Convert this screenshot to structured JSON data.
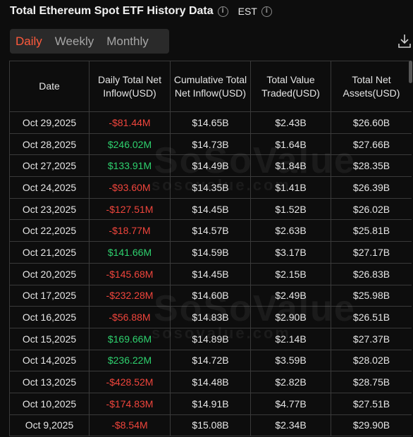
{
  "header": {
    "title": "Total Ethereum Spot ETF History Data",
    "timezone": "EST"
  },
  "tabs": [
    "Daily",
    "Weekly",
    "Monthly"
  ],
  "active_tab": "Daily",
  "watermark": {
    "brand": "SoSoValue",
    "url": "sosovalue.com"
  },
  "table": {
    "headers": [
      "Date",
      "Daily Total Net Inflow(USD)",
      "Cumulative Total Net Inflow(USD)",
      "Total Value Traded(USD)",
      "Total Net Assets(USD)"
    ],
    "rows": [
      [
        "Oct 29,2025",
        "-$81.44M",
        "$14.65B",
        "$2.43B",
        "$26.60B"
      ],
      [
        "Oct 28,2025",
        "$246.02M",
        "$14.73B",
        "$1.64B",
        "$27.66B"
      ],
      [
        "Oct 27,2025",
        "$133.91M",
        "$14.49B",
        "$1.84B",
        "$28.35B"
      ],
      [
        "Oct 24,2025",
        "-$93.60M",
        "$14.35B",
        "$1.41B",
        "$26.39B"
      ],
      [
        "Oct 23,2025",
        "-$127.51M",
        "$14.45B",
        "$1.52B",
        "$26.02B"
      ],
      [
        "Oct 22,2025",
        "-$18.77M",
        "$14.57B",
        "$2.63B",
        "$25.81B"
      ],
      [
        "Oct 21,2025",
        "$141.66M",
        "$14.59B",
        "$3.17B",
        "$27.17B"
      ],
      [
        "Oct 20,2025",
        "-$145.68M",
        "$14.45B",
        "$2.15B",
        "$26.83B"
      ],
      [
        "Oct 17,2025",
        "-$232.28M",
        "$14.60B",
        "$2.49B",
        "$25.98B"
      ],
      [
        "Oct 16,2025",
        "-$56.88M",
        "$14.83B",
        "$2.90B",
        "$26.51B"
      ],
      [
        "Oct 15,2025",
        "$169.66M",
        "$14.89B",
        "$2.14B",
        "$27.37B"
      ],
      [
        "Oct 14,2025",
        "$236.22M",
        "$14.72B",
        "$3.59B",
        "$28.02B"
      ],
      [
        "Oct 13,2025",
        "-$428.52M",
        "$14.48B",
        "$2.82B",
        "$28.75B"
      ],
      [
        "Oct 10,2025",
        "-$174.83M",
        "$14.91B",
        "$4.77B",
        "$27.51B"
      ],
      [
        "Oct 9,2025",
        "-$8.54M",
        "$15.08B",
        "$2.34B",
        "$29.90B"
      ]
    ]
  },
  "colors": {
    "negative": "#f0453c",
    "positive": "#2ed16e",
    "active_tab": "#ff5a3c"
  },
  "icons": [
    "info-icon",
    "download-icon"
  ]
}
